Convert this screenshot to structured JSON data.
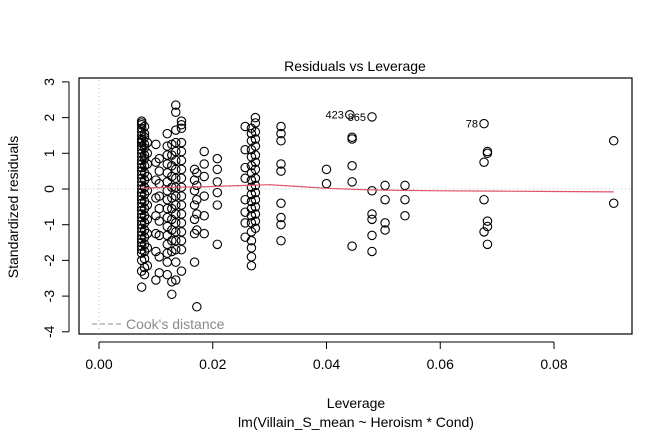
{
  "chart_data": {
    "type": "scatter",
    "title": "Residuals vs Leverage",
    "xlabel": "Leverage",
    "subtitle": "lm(Villain_S_mean ~ Heroism * Cond)",
    "ylabel": "Standardized residuals",
    "xlim": [
      -0.0035,
      0.0937
    ],
    "ylim": [
      -4,
      3
    ],
    "x_ticks": [
      0.0,
      0.02,
      0.04,
      0.06,
      0.08
    ],
    "x_tick_labels": [
      "0.00",
      "0.02",
      "0.04",
      "0.06",
      "0.08"
    ],
    "y_ticks": [
      -4,
      -3,
      -2,
      -1,
      0,
      1,
      2,
      3
    ],
    "y_tick_labels": [
      "-4",
      "-3",
      "-2",
      "-1",
      "0",
      "1",
      "2",
      "3"
    ],
    "legend": {
      "entries": [
        "Cook's distance"
      ],
      "placement": "bottom-left"
    },
    "reference_lines": {
      "vertical_x": 0,
      "horizontal_y": 0,
      "style": "dotted-gray"
    },
    "smooth_line": {
      "color": "#DF536B",
      "x": [
        0.0074,
        0.01,
        0.013,
        0.018,
        0.022,
        0.026,
        0.03,
        0.034,
        0.04,
        0.045,
        0.05,
        0.06,
        0.07,
        0.08,
        0.0905
      ],
      "y": [
        0.02,
        0.04,
        0.05,
        0.06,
        0.08,
        0.1,
        0.12,
        0.08,
        0.02,
        -0.01,
        -0.03,
        -0.05,
        -0.06,
        -0.07,
        -0.08
      ]
    },
    "labeled_points": [
      {
        "label": "423",
        "x": 0.0441,
        "y": 2.08
      },
      {
        "label": "865",
        "x": 0.048,
        "y": 2.02
      },
      {
        "label": "78",
        "x": 0.0677,
        "y": 1.83
      }
    ],
    "columns": [
      {
        "x": 0.0075,
        "y": [
          1.9,
          1.85,
          1.8,
          1.7,
          1.6,
          1.5,
          1.4,
          1.35,
          1.3,
          1.2,
          1.1,
          1.0,
          0.9,
          0.8,
          0.7,
          0.6,
          0.5,
          0.4,
          0.3,
          0.2,
          0.1,
          0.0,
          -0.1,
          -0.2,
          -0.3,
          -0.4,
          -0.5,
          -0.6,
          -0.7,
          -0.8,
          -0.9,
          -1.0,
          -1.1,
          -1.2,
          -1.3,
          -1.4,
          -1.5,
          -1.6,
          -1.7,
          -1.8,
          -2.0,
          -2.3,
          -2.75
        ]
      },
      {
        "x": 0.008,
        "y": [
          1.75,
          1.55,
          1.45,
          1.25,
          1.15,
          0.95,
          0.85,
          0.65,
          0.45,
          0.25,
          0.05,
          -0.15,
          -0.35,
          -0.55,
          -0.75,
          -0.95,
          -1.15,
          -1.35,
          -1.55,
          -1.75,
          -1.95,
          -2.2,
          -2.4
        ]
      },
      {
        "x": 0.0085,
        "y": [
          1.3,
          1.0,
          0.7,
          0.35,
          -0.05,
          -0.45,
          -0.85,
          -1.25,
          -1.65,
          -2.15
        ]
      },
      {
        "x": 0.01,
        "y": [
          1.25,
          0.75,
          0.25,
          -0.25,
          -0.75,
          -1.25,
          -1.75,
          -2.55
        ]
      },
      {
        "x": 0.0106,
        "y": [
          0.85,
          0.5,
          0.15,
          -0.2,
          -0.55,
          -0.9,
          -1.3,
          -1.9,
          -2.35
        ]
      },
      {
        "x": 0.012,
        "y": [
          1.55,
          1.2,
          0.95,
          0.7,
          0.45,
          0.2,
          -0.05,
          -0.3,
          -0.55,
          -0.8,
          -1.05,
          -1.3,
          -1.55,
          -1.8,
          -2.05,
          -2.4
        ]
      },
      {
        "x": 0.0128,
        "y": [
          1.25,
          0.95,
          0.65,
          0.35,
          0.05,
          -0.25,
          -0.55,
          -0.85,
          -1.15,
          -1.45,
          -1.75,
          -2.6,
          -2.95
        ]
      },
      {
        "x": 0.0135,
        "y": [
          2.35,
          2.15,
          1.65,
          1.3,
          1.05,
          0.8,
          0.55,
          0.3,
          0.05,
          -0.2,
          -0.45,
          -0.7,
          -0.95,
          -1.2,
          -1.45,
          -1.7,
          -2.05,
          -2.55
        ]
      },
      {
        "x": 0.0145,
        "y": [
          1.9,
          1.8,
          1.7,
          1.3,
          1.05,
          0.8,
          0.55,
          0.3,
          0.05,
          -0.2,
          -0.45,
          -0.7,
          -0.95,
          -1.2,
          -1.45,
          -1.7,
          -2.3
        ]
      },
      {
        "x": 0.0168,
        "y": [
          0.55,
          0.25,
          -0.05,
          -0.45,
          -0.85,
          -1.25,
          -2.05
        ]
      },
      {
        "x": 0.0172,
        "y": [
          0.45,
          0.1,
          -0.3,
          -0.7,
          -1.15,
          -3.3
        ]
      },
      {
        "x": 0.0185,
        "y": [
          1.05,
          0.7,
          0.35,
          -0.2,
          -0.75,
          -1.25
        ]
      },
      {
        "x": 0.0208,
        "y": [
          0.85,
          0.55,
          0.2,
          -0.1,
          -0.45,
          -1.55
        ]
      },
      {
        "x": 0.0257,
        "y": [
          1.75,
          1.1,
          0.6,
          0.3,
          -0.3,
          -0.65,
          -0.95,
          -1.35
        ]
      },
      {
        "x": 0.0268,
        "y": [
          1.7,
          1.55,
          1.35,
          1.1,
          0.9,
          0.65,
          0.45,
          0.25,
          0.05,
          -0.15,
          -0.35,
          -0.55,
          -0.75,
          -0.95,
          -1.2,
          -1.45,
          -1.65,
          -1.9,
          -2.15
        ]
      },
      {
        "x": 0.0275,
        "y": [
          2.0,
          1.85,
          1.6,
          1.4,
          1.2,
          0.95,
          0.75,
          0.55,
          0.3,
          0.1,
          -0.1,
          -0.3,
          -0.5,
          -0.7,
          -0.9,
          -1.1
        ]
      },
      {
        "x": 0.032,
        "y": [
          1.75,
          1.55,
          1.35,
          0.7,
          0.5,
          -0.4,
          -0.8,
          -1.0,
          -1.45
        ]
      },
      {
        "x": 0.04,
        "y": [
          0.55,
          0.15
        ]
      },
      {
        "x": 0.0445,
        "y": [
          1.45,
          1.4,
          0.65,
          0.2,
          -1.6
        ]
      },
      {
        "x": 0.048,
        "y": [
          -0.05,
          -0.7,
          -0.85,
          -1.3,
          -1.75
        ]
      },
      {
        "x": 0.0503,
        "y": [
          0.1,
          -0.3,
          -0.95,
          -1.15
        ]
      },
      {
        "x": 0.0538,
        "y": [
          0.1,
          -0.3,
          -0.75
        ]
      },
      {
        "x": 0.0677,
        "y": [
          0.75,
          -0.3,
          -1.2
        ]
      },
      {
        "x": 0.0683,
        "y": [
          1.05,
          1.0,
          -0.9,
          -1.05,
          -1.55
        ]
      },
      {
        "x": 0.0905,
        "y": [
          1.35,
          -0.4
        ]
      }
    ]
  }
}
